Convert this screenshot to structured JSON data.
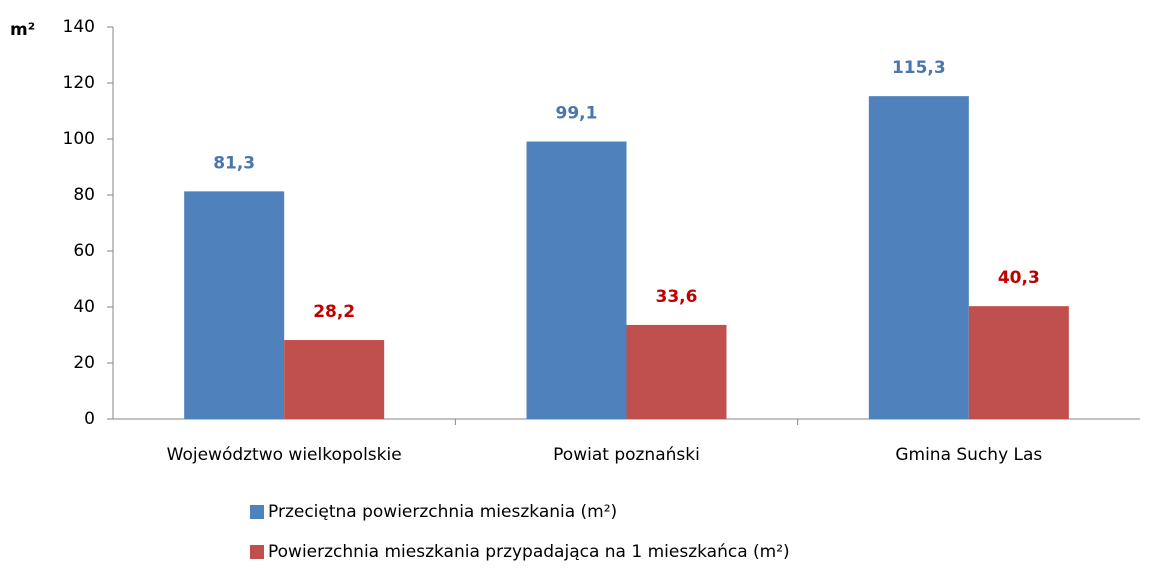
{
  "chart_data": {
    "type": "bar",
    "ylabel": "m²",
    "categories": [
      "Województwo wielkopolskie",
      "Powiat poznański",
      "Gmina Suchy Las"
    ],
    "series": [
      {
        "name": "Przeciętna powierzchnia mieszkania (m²)",
        "color": "#4f81bd",
        "label_color": "#4a76ac",
        "values": [
          81.3,
          99.1,
          115.3
        ],
        "value_labels": [
          "81,3",
          "99,1",
          "115,3"
        ]
      },
      {
        "name": "Powierzchnia mieszkania przypadająca na 1 mieszkańca (m²)",
        "color": "#c0504d",
        "label_color": "#c00000",
        "values": [
          28.2,
          33.6,
          40.3
        ],
        "value_labels": [
          "28,2",
          "33,6",
          "40,3"
        ]
      }
    ],
    "ylim": [
      0,
      140
    ],
    "yticks": [
      0,
      20,
      40,
      60,
      80,
      100,
      120,
      140
    ],
    "grid": false,
    "legend": "bottom"
  }
}
